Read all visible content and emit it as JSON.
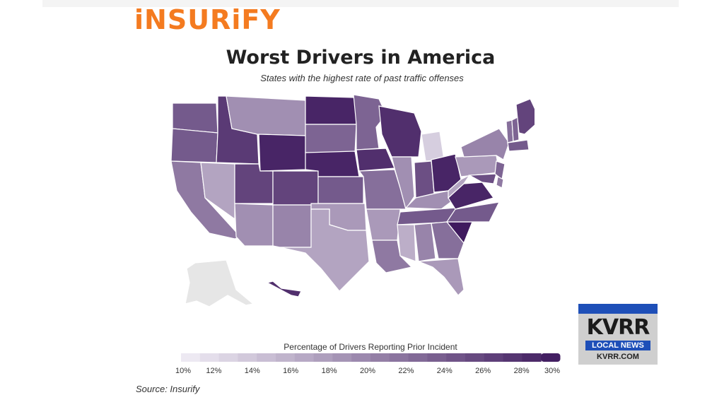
{
  "brand": {
    "name": "iNSURiFY",
    "color": "#f47b20"
  },
  "source": "Source: Insurify",
  "chart_data": {
    "type": "choropleth",
    "title": "Worst Drivers in America",
    "subtitle": "States with the highest rate of past traffic offenses",
    "legend": {
      "title": "Percentage of Drivers Reporting Prior Incident",
      "ticks": [
        "10%",
        "12%",
        "14%",
        "16%",
        "18%",
        "20%",
        "22%",
        "24%",
        "26%",
        "28%",
        "30%"
      ],
      "min": 10,
      "max": 30,
      "steps": 20,
      "color_low": "#f1eef6",
      "color_high": "#3f1a5e"
    },
    "no_data_color": "#e6e6e6",
    "states": [
      {
        "id": "WA",
        "value": 24
      },
      {
        "id": "OR",
        "value": 24
      },
      {
        "id": "CA",
        "value": 21
      },
      {
        "id": "NV",
        "value": 17
      },
      {
        "id": "ID",
        "value": 27
      },
      {
        "id": "MT",
        "value": 19
      },
      {
        "id": "WY",
        "value": 29
      },
      {
        "id": "UT",
        "value": 26
      },
      {
        "id": "AZ",
        "value": 19
      },
      {
        "id": "CO",
        "value": 26
      },
      {
        "id": "NM",
        "value": 20
      },
      {
        "id": "ND",
        "value": 29
      },
      {
        "id": "SD",
        "value": 23
      },
      {
        "id": "NE",
        "value": 29
      },
      {
        "id": "KS",
        "value": 24
      },
      {
        "id": "OK",
        "value": 18
      },
      {
        "id": "TX",
        "value": 17
      },
      {
        "id": "MN",
        "value": 23
      },
      {
        "id": "IA",
        "value": 28
      },
      {
        "id": "MO",
        "value": 22
      },
      {
        "id": "AR",
        "value": 18
      },
      {
        "id": "LA",
        "value": 21
      },
      {
        "id": "WI",
        "value": 28
      },
      {
        "id": "IL",
        "value": 19
      },
      {
        "id": "MI",
        "value": 13
      },
      {
        "id": "IN",
        "value": 25
      },
      {
        "id": "OH",
        "value": 29
      },
      {
        "id": "KY",
        "value": 19
      },
      {
        "id": "TN",
        "value": 24
      },
      {
        "id": "MS",
        "value": 16
      },
      {
        "id": "AL",
        "value": 20
      },
      {
        "id": "GA",
        "value": 22
      },
      {
        "id": "FL",
        "value": 18
      },
      {
        "id": "SC",
        "value": 30
      },
      {
        "id": "NC",
        "value": 24
      },
      {
        "id": "VA",
        "value": 29
      },
      {
        "id": "WV",
        "value": 17
      },
      {
        "id": "PA",
        "value": 18
      },
      {
        "id": "NY",
        "value": 20
      },
      {
        "id": "MD",
        "value": 25
      },
      {
        "id": "NJ",
        "value": 23
      },
      {
        "id": "DE",
        "value": 21
      },
      {
        "id": "VT",
        "value": 22
      },
      {
        "id": "NH",
        "value": 23
      },
      {
        "id": "MA",
        "value": 24
      },
      {
        "id": "ME",
        "value": 26
      },
      {
        "id": "HI",
        "value": 28
      },
      {
        "id": "AK",
        "value": null
      }
    ]
  },
  "overlay": {
    "logo": "KVRR",
    "tag": "LOCAL NEWS",
    "url": "KVRR.COM"
  }
}
